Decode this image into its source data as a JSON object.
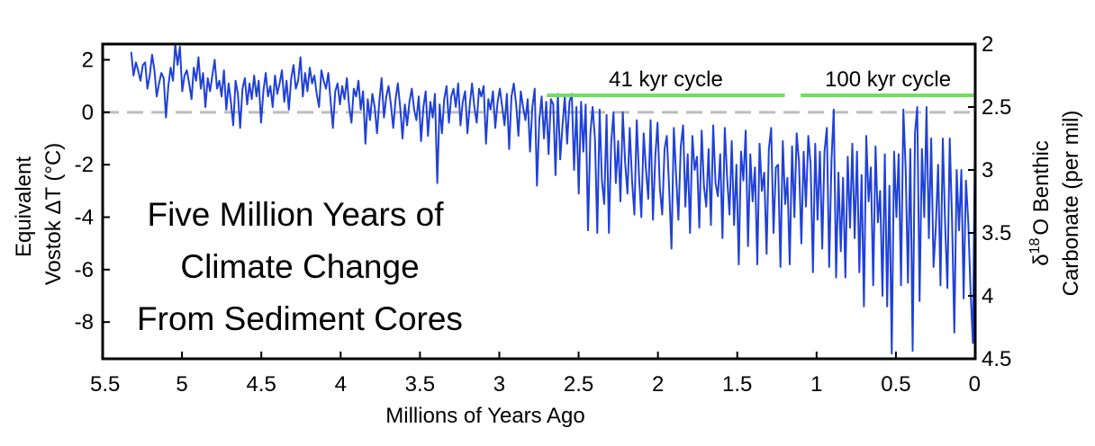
{
  "chart_data": {
    "type": "line",
    "title_lines": [
      "Five Million Years of",
      "Climate Change",
      "From Sediment Cores"
    ],
    "xlabel": "Millions of Years Ago",
    "ylabel_left_line1": "Equivalent",
    "ylabel_left_line2": "Vostok ΔT (°C)",
    "ylabel_right_delta": "δ",
    "ylabel_right_sup": "18",
    "ylabel_right_rest": "O Benthic",
    "ylabel_right_line2": "Carbonate (per mil)",
    "xlim": [
      5.5,
      0
    ],
    "ylim_left": [
      -9.4,
      2.6
    ],
    "ylim_right": [
      2.0,
      4.5
    ],
    "x_ticks": [
      "5.5",
      "5",
      "4.5",
      "4",
      "3.5",
      "3",
      "2.5",
      "2",
      "1.5",
      "1",
      "0.5",
      "0"
    ],
    "y_ticks_left": [
      "2",
      "0",
      "-2",
      "-4",
      "-6",
      "-8"
    ],
    "y_ticks_right": [
      "2",
      "2.5",
      "3",
      "3.5",
      "4",
      "4.5"
    ],
    "reference_line": {
      "y": 0,
      "style": "dashed",
      "color": "#bdbdbd"
    },
    "annotations": [
      {
        "label": "41 kyr cycle",
        "x_start": 2.7,
        "x_end": 1.2,
        "color": "#6de05a"
      },
      {
        "label": "100 kyr cycle",
        "x_start": 1.1,
        "x_end": 0.0,
        "color": "#6de05a"
      }
    ],
    "series": [
      {
        "color": "#2041d8",
        "x_start": 5.32,
        "x_end": 0.0,
        "values": [
          2.3,
          1.4,
          1.9,
          1.6,
          1.2,
          1.8,
          1.9,
          0.9,
          1.4,
          2.2,
          1.6,
          0.6,
          1.1,
          1.5,
          1.3,
          -0.2,
          1.0,
          1.7,
          1.2,
          2.6,
          1.8,
          2.5,
          0.8,
          1.4,
          1.6,
          1.1,
          0.5,
          1.7,
          1.2,
          2.1,
          0.9,
          1.5,
          0.2,
          1.3,
          0.8,
          1.4,
          2.0,
          0.9,
          1.2,
          0.6,
          1.6,
          0.1,
          1.1,
          0.4,
          -0.5,
          1.2,
          0.7,
          -0.6,
          0.9,
          1.3,
          0.3,
          1.1,
          0.5,
          1.4,
          0.6,
          1.2,
          -0.4,
          0.8,
          1.5,
          0.6,
          1.0,
          0.2,
          1.4,
          0.7,
          1.1,
          1.6,
          0.4,
          1.2,
          0.1,
          1.3,
          1.8,
          0.9,
          1.2,
          2.1,
          0.6,
          1.5,
          0.8,
          1.7,
          1.1,
          1.4,
          0.7,
          0.2,
          1.6,
          1.2,
          0.9,
          1.5,
          0.4,
          -0.6,
          0.8,
          1.1,
          0.3,
          1.0,
          0.5,
          1.3,
          0.2,
          -0.4,
          0.9,
          0.6,
          1.2,
          0.1,
          0.8,
          -1.2,
          0.5,
          -0.3,
          0.7,
          0.2,
          -0.8,
          0.4,
          1.3,
          -0.2,
          0.6,
          1.0,
          0.3,
          -0.6,
          0.5,
          1.1,
          0.2,
          -1.0,
          0.3,
          -0.5,
          0.4,
          0.9,
          0.1,
          -0.3,
          0.6,
          -1.1,
          0.2,
          0.8,
          -0.9,
          0.4,
          -0.2,
          0.7,
          -2.7,
          0.3,
          -0.8,
          0.5,
          1.0,
          -0.4,
          0.6,
          0.9,
          0.2,
          1.1,
          -0.5,
          0.4,
          0.8,
          -0.8,
          0.3,
          1.1,
          0.2,
          -0.4,
          0.9,
          0.6,
          1.0,
          -1.2,
          0.5,
          0.1,
          0.8,
          -0.6,
          0.4,
          0.9,
          0.2,
          -0.5,
          0.7,
          -1.4,
          0.6,
          1.1,
          0.3,
          -0.9,
          0.8,
          0.2,
          -0.3,
          0.5,
          -1.5,
          0.2,
          0.9,
          -2.8,
          -0.3,
          0.6,
          -1.0,
          0.4,
          -1.6,
          0.5,
          0.3,
          -2.4,
          0.7,
          -1.8,
          -0.5,
          0.6,
          -1.2,
          0.4,
          0.7,
          -2.2,
          0.2,
          -3.1,
          0.4,
          -1.5,
          0.3,
          -4.5,
          -0.8,
          0.2,
          -1.0,
          -4.6,
          0.1,
          -2.6,
          -3.5,
          -0.1,
          -4.6,
          -1.2,
          0.0,
          -2.7,
          -1.1,
          -3.4,
          0.0,
          -1.9,
          -3.1,
          -0.6,
          -2.6,
          -3.9,
          -0.3,
          -2.4,
          -4.0,
          -0.8,
          -2.2,
          -3.3,
          -0.3,
          -4.1,
          -1.7,
          -0.4,
          -2.9,
          -3.9,
          -1.4,
          -0.9,
          -2.9,
          -5.2,
          -0.6,
          -2.4,
          -4.1,
          -1.3,
          -0.5,
          -3.6,
          -1.6,
          -4.6,
          -0.9,
          -2.2,
          -1.7,
          -4.4,
          -0.7,
          -2.8,
          -3.6,
          -1.4,
          -4.3,
          -0.5,
          -2.7,
          -3.2,
          -1.6,
          -4.8,
          -0.6,
          -2.5,
          -3.9,
          -1.1,
          -4.3,
          -2.0,
          -5.8,
          -1.5,
          -2.6,
          -0.7,
          -5.1,
          -1.6,
          -3.4,
          -2.1,
          -5.8,
          -1.2,
          -3.0,
          -2.3,
          -5.4,
          -1.4,
          -0.6,
          -4.6,
          -2.1,
          -2.0,
          -5.9,
          -1.1,
          -3.5,
          -2.5,
          -5.8,
          -1.3,
          -4.0,
          -0.8,
          -1.9,
          -5.0,
          -1.5,
          -3.6,
          -0.9,
          -2.0,
          -6.1,
          -1.2,
          -4.1,
          -1.5,
          -5.2,
          -1.5,
          -0.6,
          -5.9,
          -1.8,
          0.1,
          -6.3,
          -2.3,
          -5.3,
          -2.5,
          -6.3,
          -1.7,
          -4.4,
          -1.2,
          -4.8,
          -1.5,
          -6.1,
          -2.4,
          -7.4,
          -0.9,
          -3.4,
          -2.1,
          -6.6,
          -1.3,
          -4.2,
          -3.0,
          -7.0,
          -1.6,
          -7.4,
          -2.8,
          -9.2,
          -1.5,
          -4.0,
          -1.6,
          -6.6,
          0.1,
          -2.2,
          -6.5,
          -1.4,
          -9.1,
          -0.8,
          0.2,
          -7.2,
          -1.4,
          -4.0,
          0.2,
          -4.8,
          -1.0,
          -5.9,
          -4.4,
          -2.0,
          -6.6,
          -1.0,
          -4.2,
          -6.7,
          -1.0,
          -4.2,
          -8.4,
          -2.2,
          -4.5,
          -2.2,
          -7.1,
          -2.6,
          -4.2,
          -6.9,
          -8.8,
          0.0
        ]
      }
    ]
  }
}
